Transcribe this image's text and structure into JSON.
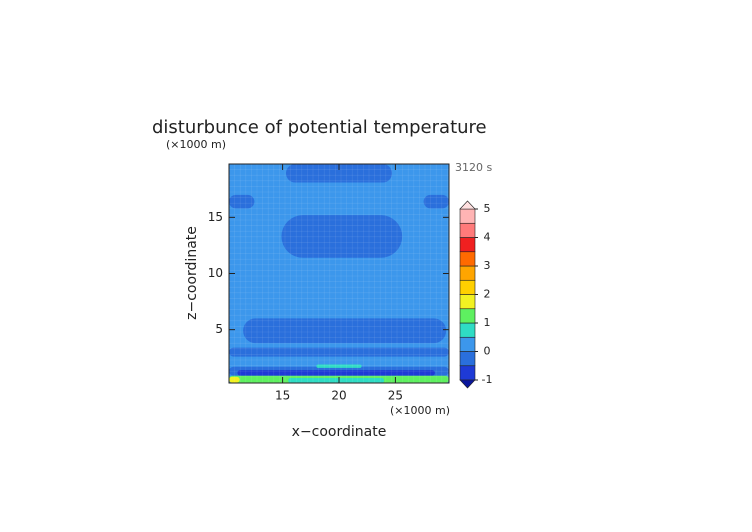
{
  "chart_data": {
    "type": "contour",
    "title": "disturbunce of potential temperature",
    "y_unit": "(×1000 m)",
    "x_unit": "(×1000 m)",
    "time_label": "3120 s",
    "xlabel": "x−coordinate",
    "ylabel": "z−coordinate",
    "xlim": [
      10.25,
      29.75
    ],
    "ylim": [
      0.25,
      19.75
    ],
    "xticks": [
      15,
      20,
      25
    ],
    "yticks": [
      5,
      10,
      15
    ],
    "background_value": 0.2,
    "regions": [
      {
        "x": [
          15.3,
          24.7
        ],
        "z": [
          18.1,
          19.75
        ],
        "value": -0.2
      },
      {
        "x": [
          10.25,
          12.5
        ],
        "z": [
          15.8,
          17.0
        ],
        "value": -0.2
      },
      {
        "x": [
          27.5,
          29.75
        ],
        "z": [
          15.8,
          17.0
        ],
        "value": -0.2
      },
      {
        "x": [
          14.9,
          25.6
        ],
        "z": [
          11.4,
          15.2
        ],
        "value": -0.2
      },
      {
        "x": [
          11.5,
          29.5
        ],
        "z": [
          3.8,
          6.0
        ],
        "value": -0.2
      },
      {
        "x": [
          10.25,
          29.75
        ],
        "z": [
          2.6,
          3.4
        ],
        "value": -0.2
      },
      {
        "x": [
          10.25,
          29.75
        ],
        "z": [
          0.9,
          1.7
        ],
        "value": -0.2
      },
      {
        "x": [
          11.0,
          28.5
        ],
        "z": [
          0.9,
          1.4
        ],
        "value": -0.8
      },
      {
        "x": [
          18.0,
          22.0
        ],
        "z": [
          1.6,
          1.9
        ],
        "value": 0.7
      },
      {
        "x": [
          10.25,
          29.75
        ],
        "z": [
          0.25,
          0.9
        ],
        "value": 1.2
      },
      {
        "x": [
          10.25,
          11.2
        ],
        "z": [
          0.3,
          0.8
        ],
        "value": 1.7
      },
      {
        "x": [
          15.5,
          24.0
        ],
        "z": [
          0.25,
          0.7
        ],
        "value": 0.7
      }
    ],
    "levels": [
      -1,
      -0.5,
      0,
      0.5,
      1,
      1.5,
      2,
      2.5,
      3,
      3.5,
      4,
      4.5,
      5
    ],
    "colors": [
      "#1e3ad6",
      "#2a6fdc",
      "#3c97ec",
      "#2fdcc4",
      "#5ef060",
      "#f2f222",
      "#ffd000",
      "#ffa500",
      "#ff6a00",
      "#f02020",
      "#ff7a7a",
      "#ffb4b4"
    ],
    "under_color": "#0a169c",
    "over_color": "#ffe0e0",
    "cbar_ticks": [
      -1,
      0,
      1,
      2,
      3,
      4,
      5
    ]
  }
}
